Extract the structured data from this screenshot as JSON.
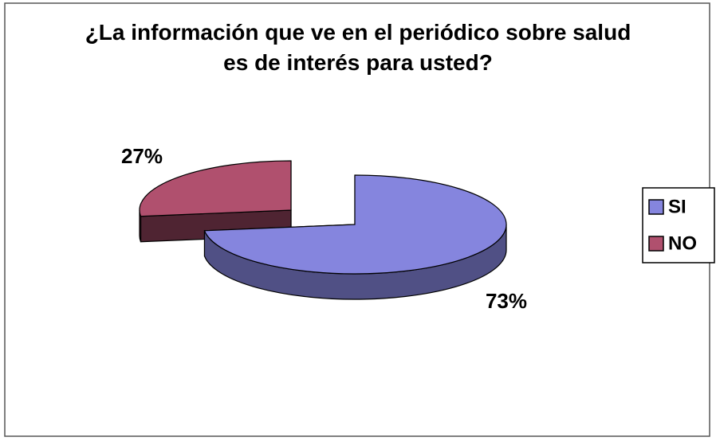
{
  "chart_data": {
    "type": "pie3d",
    "title": "¿La información que ve en el periódico sobre salud es de interés para usted?",
    "categories": [
      "SI",
      "NO"
    ],
    "values": [
      73,
      27
    ],
    "value_labels": [
      "73%",
      "27%"
    ],
    "colors": [
      "#8585de",
      "#b0506e"
    ],
    "legend": "right"
  }
}
